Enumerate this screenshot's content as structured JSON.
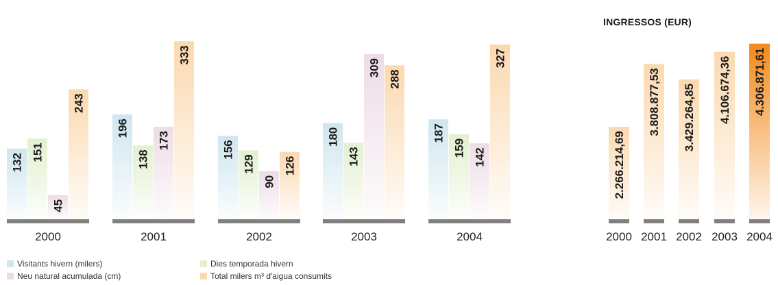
{
  "chart_data": [
    {
      "type": "bar",
      "categories": [
        "2000",
        "2001",
        "2002",
        "2003",
        "2004"
      ],
      "series": [
        {
          "name": "Visitants hivern (milers)",
          "values": [
            132,
            196,
            156,
            180,
            187
          ],
          "color": "#cfe6ef"
        },
        {
          "name": "Dies temporada hivern",
          "values": [
            151,
            138,
            129,
            143,
            159
          ],
          "color": "#e3f0d0"
        },
        {
          "name": "Neu natural acumulada (cm)",
          "values": [
            45,
            173,
            90,
            309,
            142
          ],
          "color": "#eddce6"
        },
        {
          "name": "Total milers m³ d'aigua consumits",
          "values": [
            243,
            333,
            126,
            288,
            327
          ],
          "color": "#fbd9b0"
        }
      ],
      "ylim": [
        0,
        340
      ],
      "legend_position": "bottom"
    },
    {
      "type": "bar",
      "title": "INGRESSOS (EUR)",
      "categories": [
        "2000",
        "2001",
        "2002",
        "2003",
        "2004"
      ],
      "values": [
        2266214.69,
        3808877.53,
        3429264.85,
        4106674.36,
        4306871.61
      ],
      "value_labels": [
        "2.266.214,69",
        "3.808.877,53",
        "3.429.264,85",
        "4.106.674,36",
        "4.306.871,61"
      ],
      "highlight_color": "#f28a1c",
      "color": "#fbd9b0"
    }
  ]
}
